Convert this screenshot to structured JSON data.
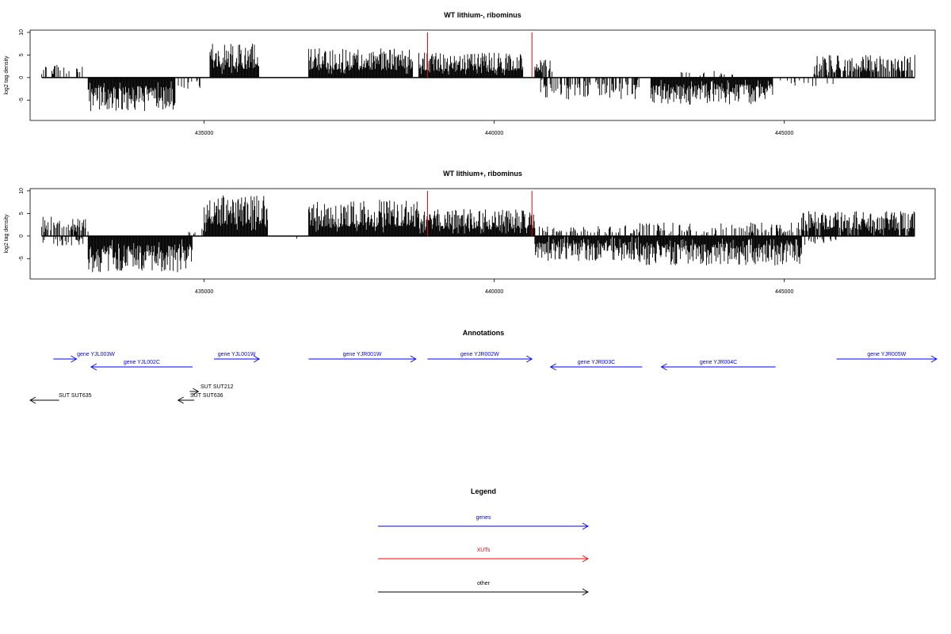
{
  "chart_data": [
    {
      "type": "bar",
      "title": "WT lithium-, ribominus",
      "ylabel": "log2 tag density",
      "xlim": [
        432000,
        447600
      ],
      "ylim": [
        -9.5,
        10.5
      ],
      "x_ticks": [
        435000,
        440000,
        445000
      ],
      "x_tick_labels": [
        "435000",
        "440000",
        "445000"
      ],
      "y_ticks": [
        -5,
        0,
        5,
        10
      ],
      "y_tick_labels": [
        "-5",
        "0",
        "5",
        "10"
      ],
      "highlight_color": "#ff0000",
      "highlight_x": [
        438850,
        440650
      ],
      "segments": [
        {
          "start": 432200,
          "end": 432900,
          "sign": 1,
          "max": 3,
          "density": 0.35
        },
        {
          "start": 433000,
          "end": 434500,
          "sign": -1,
          "max": 7.5,
          "density": 1.0
        },
        {
          "start": 434500,
          "end": 434950,
          "sign": -1,
          "max": 2.5,
          "density": 0.35
        },
        {
          "start": 435100,
          "end": 435950,
          "sign": 1,
          "max": 7.5,
          "density": 1.0
        },
        {
          "start": 436800,
          "end": 438600,
          "sign": 1,
          "max": 6.5,
          "density": 1.0
        },
        {
          "start": 438700,
          "end": 440500,
          "sign": 1,
          "max": 5.5,
          "density": 1.0
        },
        {
          "start": 440700,
          "end": 441000,
          "sign": 1,
          "max": 4,
          "density": 0.8
        },
        {
          "start": 440800,
          "end": 442500,
          "sign": -1,
          "max": 5,
          "density": 0.55
        },
        {
          "start": 442700,
          "end": 444800,
          "sign": -1,
          "max": 6,
          "density": 1.0
        },
        {
          "start": 443200,
          "end": 444200,
          "sign": 1,
          "max": 1.5,
          "density": 0.1
        },
        {
          "start": 444900,
          "end": 445900,
          "sign": -1,
          "max": 2,
          "density": 0.12
        },
        {
          "start": 445500,
          "end": 447250,
          "sign": 1,
          "max": 5,
          "density": 0.7
        }
      ]
    },
    {
      "type": "bar",
      "title": "WT lithium+, ribominus",
      "ylabel": "log2 tag density",
      "xlim": [
        432000,
        447600
      ],
      "ylim": [
        -9.5,
        10.5
      ],
      "x_ticks": [
        435000,
        440000,
        445000
      ],
      "x_tick_labels": [
        "435000",
        "440000",
        "445000"
      ],
      "y_ticks": [
        -5,
        0,
        5,
        10
      ],
      "y_tick_labels": [
        "-5",
        "0",
        "5",
        "10"
      ],
      "highlight_color": "#ff0000",
      "highlight_x": [
        438850,
        440650
      ],
      "segments": [
        {
          "start": 432200,
          "end": 433000,
          "sign": 1,
          "max": 4.5,
          "density": 0.6
        },
        {
          "start": 432200,
          "end": 433000,
          "sign": -1,
          "max": 2.5,
          "density": 0.3
        },
        {
          "start": 433000,
          "end": 434800,
          "sign": -1,
          "max": 8,
          "density": 1.0
        },
        {
          "start": 434700,
          "end": 435000,
          "sign": 1,
          "max": 2,
          "density": 0.4
        },
        {
          "start": 435000,
          "end": 436100,
          "sign": 1,
          "max": 9,
          "density": 1.0
        },
        {
          "start": 436300,
          "end": 436700,
          "sign": -1,
          "max": 2,
          "density": 0.1
        },
        {
          "start": 436800,
          "end": 438700,
          "sign": 1,
          "max": 8,
          "density": 1.0
        },
        {
          "start": 438700,
          "end": 440700,
          "sign": 1,
          "max": 6,
          "density": 1.0
        },
        {
          "start": 440700,
          "end": 442500,
          "sign": -1,
          "max": 5.5,
          "density": 0.95
        },
        {
          "start": 440700,
          "end": 442500,
          "sign": 1,
          "max": 2.5,
          "density": 0.3
        },
        {
          "start": 442500,
          "end": 445300,
          "sign": -1,
          "max": 6.5,
          "density": 1.0
        },
        {
          "start": 442500,
          "end": 445300,
          "sign": 1,
          "max": 3,
          "density": 0.35
        },
        {
          "start": 445300,
          "end": 447250,
          "sign": 1,
          "max": 5.5,
          "density": 0.9
        },
        {
          "start": 445300,
          "end": 445900,
          "sign": -1,
          "max": 2,
          "density": 0.3
        }
      ]
    }
  ],
  "annotations": {
    "title": "Annotations",
    "items": [
      {
        "label": "gene YJL003W",
        "start": 432400,
        "end": 432800,
        "strand": "+",
        "row": 0,
        "color": "#0000ff"
      },
      {
        "label": "gene YJL002C",
        "start": 433050,
        "end": 434800,
        "strand": "-",
        "row": 1,
        "color": "#0000ff"
      },
      {
        "label": "gene YJL001W",
        "start": 435170,
        "end": 435950,
        "strand": "+",
        "row": 0,
        "color": "#0000ff"
      },
      {
        "label": "gene YJR001W",
        "start": 436800,
        "end": 438650,
        "strand": "+",
        "row": 0,
        "color": "#0000ff"
      },
      {
        "label": "gene YJR002W",
        "start": 438850,
        "end": 440650,
        "strand": "+",
        "row": 0,
        "color": "#0000ff"
      },
      {
        "label": "gene YJR003C",
        "start": 440970,
        "end": 442550,
        "strand": "-",
        "row": 1,
        "color": "#0000ff"
      },
      {
        "label": "gene YJR004C",
        "start": 442880,
        "end": 444850,
        "strand": "-",
        "row": 1,
        "color": "#0000ff"
      },
      {
        "label": "gene YJR005W",
        "start": 445900,
        "end": 447750,
        "strand": "+",
        "row": 0,
        "color": "#0000ff"
      },
      {
        "label": "SUT SUT212",
        "start": 434750,
        "end": 434900,
        "strand": "+",
        "row": 4,
        "color": "#000000"
      },
      {
        "label": "SUT SUT635",
        "start": 432000,
        "end": 432500,
        "strand": "-",
        "row": 5,
        "color": "#000000"
      },
      {
        "label": "SUT SUT636",
        "start": 434550,
        "end": 434830,
        "strand": "-",
        "row": 5,
        "color": "#000000"
      }
    ]
  },
  "legend": {
    "title": "Legend",
    "items": [
      {
        "label": "genes",
        "color": "#0000ff"
      },
      {
        "label": "XUTs",
        "color": "#ff0000"
      },
      {
        "label": "other",
        "color": "#000000"
      }
    ]
  }
}
